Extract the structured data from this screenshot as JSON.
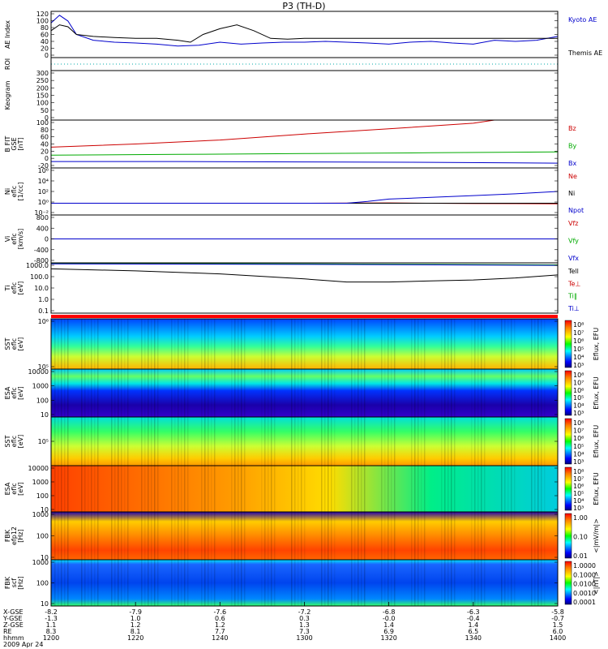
{
  "title": "P3 (TH-D)",
  "colors": {
    "black": "#000000",
    "blue": "#0000cc",
    "red": "#cc0000",
    "green": "#00aa00",
    "cyan": "#00aaaa"
  },
  "chart_data": {
    "type": "line",
    "x_axis": {
      "labels": [
        "hhmm",
        "2009 Apr 24"
      ],
      "coord_labels": [
        "X-GSE",
        "Y-GSE",
        "Z-GSE",
        "RE"
      ],
      "columns": [
        {
          "time": "1200",
          "x": "-8.2",
          "y": "-1.3",
          "z": "1.1",
          "re": "8.3"
        },
        {
          "time": "1220",
          "x": "-7.9",
          "y": "1.0",
          "z": "1.2",
          "re": "8.1"
        },
        {
          "time": "1240",
          "x": "-7.6",
          "y": "0.6",
          "z": "1.2",
          "re": "7.7"
        },
        {
          "time": "1300",
          "x": "-7.2",
          "y": "0.3",
          "z": "1.3",
          "re": "7.3"
        },
        {
          "time": "1320",
          "x": "-6.8",
          "y": "-0.0",
          "z": "1.4",
          "re": "6.9"
        },
        {
          "time": "1340",
          "x": "-6.3",
          "y": "-0.4",
          "z": "1.4",
          "re": "6.5"
        },
        {
          "time": "1400",
          "x": "-5.8",
          "y": "-0.7",
          "z": "1.5",
          "re": "6.0"
        }
      ]
    },
    "panels": [
      {
        "id": "ae",
        "ylabel": [
          "AE Index"
        ],
        "yticks": [
          "120",
          "100",
          "80",
          "60",
          "40",
          "20",
          "0"
        ],
        "ylim": [
          0,
          120
        ],
        "legend": [
          {
            "label": "Kyoto AE",
            "color": "#0000cc"
          },
          {
            "label": "Themis AE",
            "color": "#000000"
          }
        ],
        "series": [
          {
            "name": "Kyoto AE",
            "color": "#0000cc",
            "x": [
              1200,
              1202,
              1204,
              1206,
              1210,
              1215,
              1220,
              1225,
              1230,
              1235,
              1240,
              1245,
              1250,
              1255,
              1300,
              1305,
              1310,
              1315,
              1320,
              1325,
              1330,
              1335,
              1340,
              1345,
              1350,
              1355,
              1400
            ],
            "y": [
              90,
              110,
              95,
              60,
              45,
              40,
              38,
              35,
              30,
              32,
              40,
              35,
              38,
              40,
              40,
              42,
              40,
              38,
              35,
              40,
              42,
              38,
              35,
              45,
              42,
              45,
              55
            ]
          },
          {
            "name": "Themis AE",
            "color": "#000000",
            "x": [
              1200,
              1202,
              1204,
              1206,
              1210,
              1215,
              1220,
              1225,
              1230,
              1233,
              1236,
              1240,
              1244,
              1248,
              1252,
              1256,
              1300,
              1310,
              1320,
              1330,
              1340,
              1350,
              1400
            ],
            "y": [
              70,
              85,
              80,
              60,
              55,
              52,
              50,
              50,
              45,
              40,
              60,
              75,
              85,
              70,
              50,
              48,
              50,
              50,
              50,
              50,
              50,
              50,
              50
            ]
          }
        ]
      },
      {
        "id": "roi",
        "ylabel": [
          "ROI"
        ],
        "yticks": [
          "",
          ""
        ],
        "ylim": [
          0,
          1
        ],
        "legend": [],
        "series": []
      },
      {
        "id": "keogram",
        "ylabel": [
          "Keogram"
        ],
        "yticks": [
          "300",
          "250",
          "200",
          "150",
          "100",
          "50",
          "0"
        ],
        "ylim": [
          0,
          300
        ],
        "legend": [],
        "series": []
      },
      {
        "id": "b",
        "ylabel": [
          "B FIT",
          "GSE",
          "[nT]"
        ],
        "yticks": [
          "100",
          "80",
          "60",
          "40",
          "20",
          "0",
          "-20"
        ],
        "ylim": [
          -20,
          100
        ],
        "legend": [
          {
            "label": "Bz",
            "color": "#cc0000"
          },
          {
            "label": "By",
            "color": "#00aa00"
          },
          {
            "label": "Bx",
            "color": "#0000cc"
          }
        ],
        "series": [
          {
            "name": "Bz",
            "color": "#cc0000",
            "x": [
              1200,
              1220,
              1240,
              1300,
              1320,
              1340,
              1345,
              1400
            ],
            "y": [
              32,
              40,
              50,
              65,
              78,
              92,
              100,
              100
            ]
          },
          {
            "name": "By",
            "color": "#00aa00",
            "x": [
              1200,
              1230,
              1300,
              1330,
              1400
            ],
            "y": [
              12,
              14,
              16,
              18,
              20
            ]
          },
          {
            "name": "Bx",
            "color": "#0000cc",
            "x": [
              1200,
              1230,
              1300,
              1330,
              1400
            ],
            "y": [
              -4,
              -4,
              -5,
              -6,
              -8
            ]
          }
        ]
      },
      {
        "id": "density",
        "ylabel": [
          "Ni",
          "eflc",
          "[1/cc]"
        ],
        "yticks": [
          "10⁶",
          "10⁴",
          "10²",
          "10⁰",
          "10⁻²"
        ],
        "ylim": [
          -2,
          6
        ],
        "legend": [
          {
            "label": "Ne",
            "color": "#cc0000"
          },
          {
            "label": "Ni",
            "color": "#000000"
          },
          {
            "label": "Npot",
            "color": "#0000cc"
          }
        ],
        "series": [
          {
            "name": "Ne",
            "color": "#cc0000",
            "x": [
              1200,
              1300,
              1320,
              1340,
              1400
            ],
            "y": [
              0,
              0,
              0.05,
              -0.05,
              -0.1
            ]
          },
          {
            "name": "Ni",
            "color": "#000000",
            "x": [
              1200,
              1300,
              1400
            ],
            "y": [
              0,
              0,
              0
            ]
          },
          {
            "name": "Npot",
            "color": "#0000cc",
            "x": [
              1200,
              1310,
              1315,
              1320,
              1330,
              1340,
              1350,
              1400
            ],
            "y": [
              0,
              0,
              0.3,
              0.7,
              1.0,
              1.3,
              1.6,
              2.0
            ]
          }
        ]
      },
      {
        "id": "velocity",
        "ylabel": [
          "Vi",
          "eflc",
          "[km/s]"
        ],
        "yticks": [
          "800",
          "400",
          "0",
          "-400",
          "-800"
        ],
        "ylim": [
          -800,
          800
        ],
        "legend": [
          {
            "label": "Vfz",
            "color": "#cc0000"
          },
          {
            "label": "Vfy",
            "color": "#00aa00"
          },
          {
            "label": "Vfx",
            "color": "#0000cc"
          }
        ],
        "series": [
          {
            "name": "Vfz",
            "color": "#cc0000",
            "x": [
              1200,
              1300,
              1400
            ],
            "y": [
              0,
              0,
              0
            ]
          },
          {
            "name": "Vfy",
            "color": "#00aa00",
            "x": [
              1200,
              1300,
              1400
            ],
            "y": [
              0,
              0,
              0
            ]
          },
          {
            "name": "Vfx",
            "color": "#0000cc",
            "x": [
              1200,
              1300,
              1400
            ],
            "y": [
              0,
              0,
              0
            ]
          }
        ]
      },
      {
        "id": "temperature",
        "ylabel": [
          "Ti",
          "eflc",
          "[eV]"
        ],
        "yticks": [
          "1000.0",
          "100.0",
          "10.0",
          "1.0",
          "0.1"
        ],
        "ylim": [
          -1.2,
          3.8
        ],
        "legend": [
          {
            "label": "Tell",
            "color": "#000000"
          },
          {
            "label": "Te⊥",
            "color": "#cc0000"
          },
          {
            "label": "Ti‖",
            "color": "#00aa00"
          },
          {
            "label": "Ti⊥",
            "color": "#0000cc"
          }
        ],
        "series": [
          {
            "name": "Tell",
            "color": "#000000",
            "x": [
              1200,
              1220,
              1240,
              1300,
              1310,
              1320,
              1330,
              1340,
              1350,
              1400
            ],
            "y": [
              3.2,
              3.0,
              2.7,
              2.2,
              1.9,
              1.9,
              2.0,
              2.1,
              2.3,
              2.6
            ]
          },
          {
            "name": "Ti‖",
            "color": "#00aa00",
            "x": [
              1200,
              1300,
              1400
            ],
            "y": [
              3.75,
              3.7,
              3.6
            ]
          },
          {
            "name": "Ti⊥",
            "color": "#0000cc",
            "x": [
              1200,
              1300,
              1400
            ],
            "y": [
              3.7,
              3.65,
              3.55
            ]
          }
        ]
      },
      {
        "id": "sst-ion",
        "ylabel": [
          "SST",
          "eflc",
          "[eV]"
        ],
        "yticks": [
          "10⁶",
          "10⁵"
        ],
        "colorbar": {
          "label": "Eflux, EFU",
          "ticks": [
            "10⁸",
            "10⁷",
            "10⁶",
            "10⁵",
            "10⁴",
            "10³"
          ]
        }
      },
      {
        "id": "esa-ion",
        "ylabel": [
          "ESA",
          "eflc",
          "[eV]"
        ],
        "yticks": [
          "10000",
          "1000",
          "100",
          "10"
        ],
        "colorbar": {
          "label": "Eflux, EFU",
          "ticks": [
            "10⁸",
            "10⁷",
            "10⁶",
            "10⁵",
            "10⁴",
            "10³"
          ]
        }
      },
      {
        "id": "sst-elec",
        "ylabel": [
          "SST",
          "eflc",
          "[eV]"
        ],
        "yticks": [
          "10⁵"
        ],
        "colorbar": {
          "label": "Eflux, EFU",
          "ticks": [
            "10⁸",
            "10⁷",
            "10⁶",
            "10⁵",
            "10⁴",
            "10³"
          ]
        }
      },
      {
        "id": "esa-elec",
        "ylabel": [
          "ESA",
          "eflc",
          "[eV]"
        ],
        "yticks": [
          "10000",
          "1000",
          "100",
          "10"
        ],
        "colorbar": {
          "label": "Eflux, EFU",
          "ticks": [
            "10⁸",
            "10⁷",
            "10⁶",
            "10⁵",
            "10⁴",
            "10³"
          ]
        }
      },
      {
        "id": "fbk-e",
        "ylabel": [
          "FBK",
          "efp12",
          "[Hz]"
        ],
        "yticks": [
          "1000",
          "100",
          "10"
        ],
        "colorbar": {
          "label": "<|mV/m|>",
          "ticks": [
            "1.00",
            "0.10",
            "0.01"
          ]
        }
      },
      {
        "id": "fbk-b",
        "ylabel": [
          "FBK",
          "scf",
          "[Hz]"
        ],
        "yticks": [
          "1000",
          "100",
          "10"
        ],
        "colorbar": {
          "label": "<|nT|>",
          "ticks": [
            "1.0000",
            "0.1000",
            "0.0100",
            "0.0010",
            "0.0001"
          ]
        }
      }
    ]
  }
}
